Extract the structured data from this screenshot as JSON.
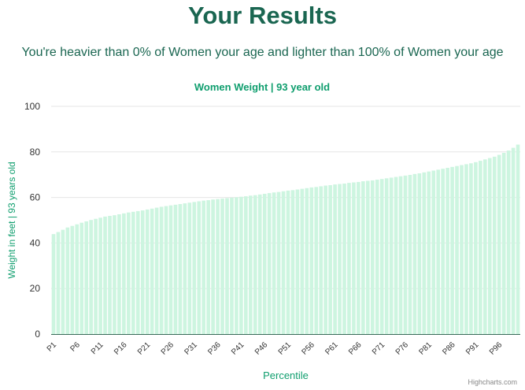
{
  "page": {
    "title": "Your Results",
    "subtitle": "You're heavier than 0% of Women your age and lighter than 100% of Women your age",
    "credit": "Highcharts.com"
  },
  "colors": {
    "heading": "#1a6651",
    "accent": "#0f9e6e",
    "bar": "#cdf5e0",
    "grid": "#e6e6e6",
    "axis_line": "#3a6b5a"
  },
  "chart_data": {
    "type": "bar",
    "title": "Women Weight | 93 year old",
    "xlabel": "Percentile",
    "ylabel": "Weight in feet | 93 years old",
    "ylim": [
      0,
      100
    ],
    "yticks": [
      0,
      20,
      40,
      60,
      80,
      100
    ],
    "grid": true,
    "legend": "none",
    "categories": [
      "P1",
      "P2",
      "P3",
      "P4",
      "P5",
      "P6",
      "P7",
      "P8",
      "P9",
      "P10",
      "P11",
      "P12",
      "P13",
      "P14",
      "P15",
      "P16",
      "P17",
      "P18",
      "P19",
      "P20",
      "P21",
      "P22",
      "P23",
      "P24",
      "P25",
      "P26",
      "P27",
      "P28",
      "P29",
      "P30",
      "P31",
      "P32",
      "P33",
      "P34",
      "P35",
      "P36",
      "P37",
      "P38",
      "P39",
      "P40",
      "P41",
      "P42",
      "P43",
      "P44",
      "P45",
      "P46",
      "P47",
      "P48",
      "P49",
      "P50",
      "P51",
      "P52",
      "P53",
      "P54",
      "P55",
      "P56",
      "P57",
      "P58",
      "P59",
      "P60",
      "P61",
      "P62",
      "P63",
      "P64",
      "P65",
      "P66",
      "P67",
      "P68",
      "P69",
      "P70",
      "P71",
      "P72",
      "P73",
      "P74",
      "P75",
      "P76",
      "P77",
      "P78",
      "P79",
      "P80",
      "P81",
      "P82",
      "P83",
      "P84",
      "P85",
      "P86",
      "P87",
      "P88",
      "P89",
      "P90",
      "P91",
      "P92",
      "P93",
      "P94",
      "P95",
      "P96",
      "P97",
      "P98",
      "P99",
      "P100"
    ],
    "tick_labels": [
      "P1",
      "P6",
      "P11",
      "P16",
      "P21",
      "P26",
      "P31",
      "P36",
      "P41",
      "P46",
      "P51",
      "P56",
      "P61",
      "P66",
      "P71",
      "P76",
      "P81",
      "P86",
      "P91",
      "P96"
    ],
    "values": [
      43.9,
      44.8,
      45.8,
      46.8,
      47.5,
      48.2,
      48.9,
      49.5,
      50.1,
      50.6,
      51.1,
      51.6,
      51.9,
      52.2,
      52.6,
      53.0,
      53.4,
      53.7,
      54.0,
      54.3,
      54.7,
      55.1,
      55.5,
      55.9,
      56.2,
      56.5,
      56.8,
      57.1,
      57.4,
      57.7,
      58.0,
      58.3,
      58.6,
      58.8,
      59.1,
      59.3,
      59.5,
      59.7,
      59.9,
      60.1,
      60.3,
      60.5,
      60.8,
      61.0,
      61.3,
      61.6,
      61.9,
      62.2,
      62.4,
      62.7,
      63.0,
      63.2,
      63.5,
      63.8,
      64.1,
      64.4,
      64.6,
      64.9,
      65.2,
      65.4,
      65.7,
      65.9,
      66.1,
      66.4,
      66.6,
      66.8,
      67.1,
      67.3,
      67.5,
      67.8,
      68.1,
      68.4,
      68.7,
      69.0,
      69.3,
      69.6,
      69.9,
      70.3,
      70.6,
      71.0,
      71.4,
      71.8,
      72.2,
      72.6,
      73.0,
      73.4,
      73.8,
      74.2,
      74.6,
      75.0,
      75.5,
      76.1,
      76.7,
      77.3,
      77.9,
      78.7,
      79.6,
      80.6,
      81.8,
      83.2
    ]
  }
}
